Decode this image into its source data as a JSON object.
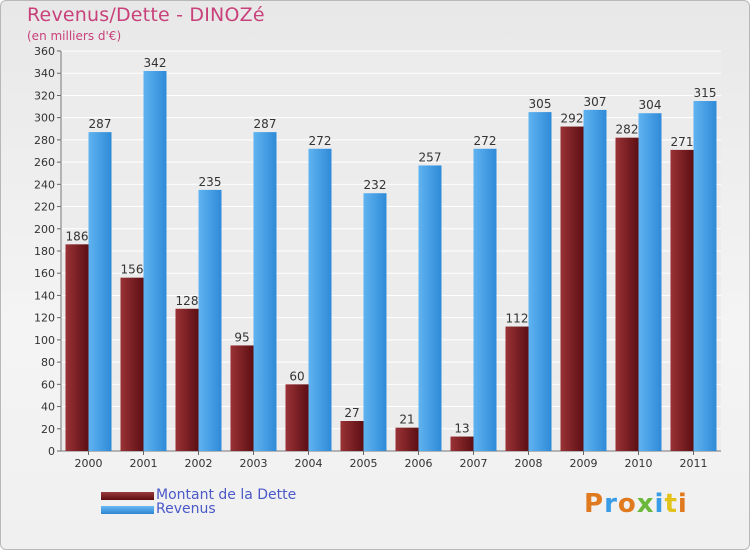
{
  "title": "Revenus/Dette - DINOZé",
  "subtitle": "(en milliers d'€)",
  "legend": {
    "debt_label": "Montant de la Dette",
    "revenue_label": "Revenus"
  },
  "logo": {
    "text": "Proxiti"
  },
  "colors": {
    "debt": "#7a1f22",
    "revenue": "#3a9be6",
    "title": "#c8417a",
    "legend_text": "#4a58c8"
  },
  "chart_data": {
    "type": "bar",
    "categories": [
      "2000",
      "2001",
      "2002",
      "2003",
      "2004",
      "2005",
      "2006",
      "2007",
      "2008",
      "2009",
      "2010",
      "2011"
    ],
    "series": [
      {
        "name": "Montant de la Dette",
        "values": [
          186,
          156,
          128,
          95,
          60,
          27,
          21,
          13,
          112,
          292,
          282,
          271
        ]
      },
      {
        "name": "Revenus",
        "values": [
          287,
          342,
          235,
          287,
          272,
          232,
          257,
          272,
          305,
          307,
          304,
          315
        ]
      }
    ],
    "ylim": [
      0,
      360
    ],
    "yticks": [
      0,
      20,
      40,
      60,
      80,
      100,
      120,
      140,
      160,
      180,
      200,
      220,
      240,
      260,
      280,
      300,
      320,
      340,
      360
    ],
    "grid": true,
    "legend_position": "bottom-left"
  }
}
